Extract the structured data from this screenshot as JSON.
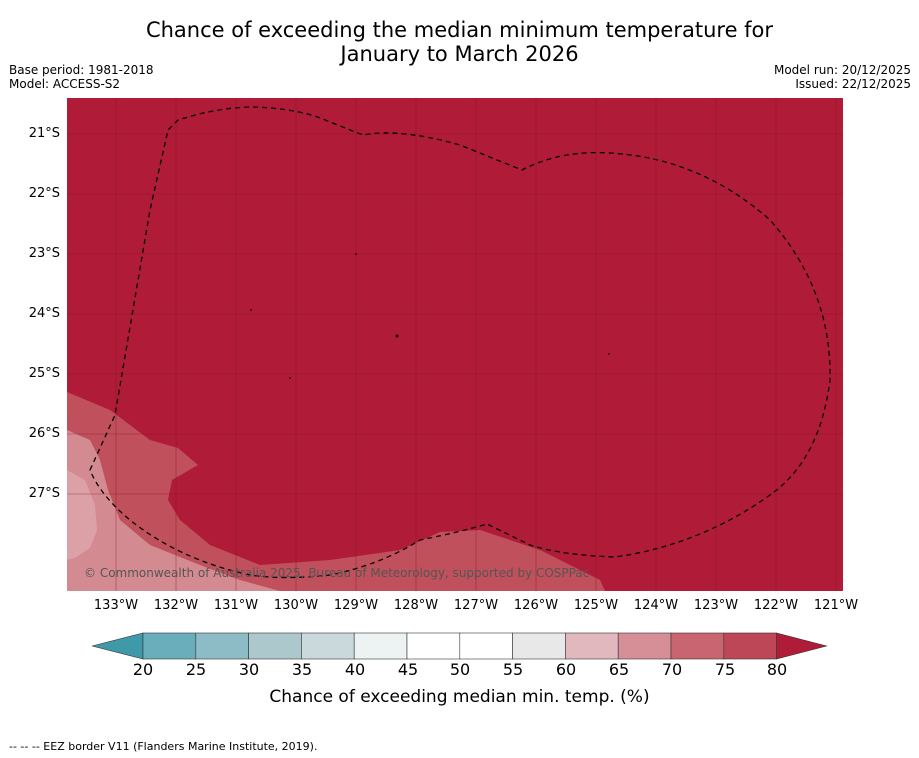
{
  "title_line1": "Chance of exceeding the median minimum temperature for",
  "title_line2": "January to March 2026",
  "base_period": "Base period: 1981-2018",
  "model": "Model: ACCESS-S2",
  "model_run": "Model run: 20/12/2025",
  "issued": "Issued: 22/12/2025",
  "copyright": "© Commonwealth of Australia 2025, Bureau of Meteorology, supported by COSPPac",
  "lat_labels": [
    "21°S",
    "22°S",
    "23°S",
    "24°S",
    "25°S",
    "26°S",
    "27°S"
  ],
  "lon_labels": [
    "133°W",
    "132°W",
    "131°W",
    "130°W",
    "129°W",
    "128°W",
    "127°W",
    "126°W",
    "125°W",
    "124°W",
    "123°W",
    "122°W",
    "121°W"
  ],
  "colorbar": {
    "ticks": [
      "20",
      "25",
      "30",
      "35",
      "40",
      "45",
      "50",
      "55",
      "60",
      "65",
      "70",
      "75",
      "80"
    ],
    "label": "Chance of exceeding median min. temp. (%)",
    "colors": [
      "#3e9aa8",
      "#6aaebc",
      "#8dbcc6",
      "#acc8cd",
      "#c9d9dc",
      "#edf2f3",
      "#ffffff",
      "#ffffff",
      "#e8e8e8",
      "#e2b8bf",
      "#d68e97",
      "#c96570",
      "#bd4756",
      "#b01c38"
    ]
  },
  "map_colors": {
    "high": "#b01c38",
    "band75": "#c0505b",
    "band70": "#d38a91",
    "grid": "#7a0f22"
  },
  "footnote": "--  --  -- EEZ border V11 (Flanders Marine Institute, 2019)."
}
